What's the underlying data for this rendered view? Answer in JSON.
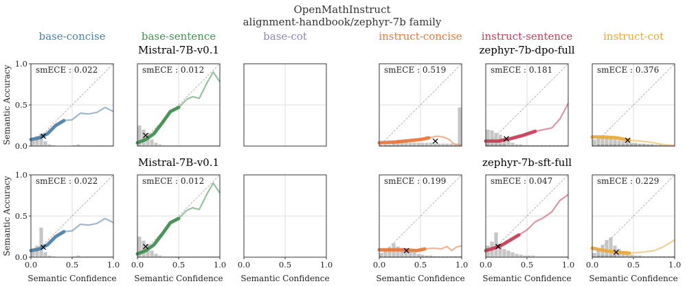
{
  "figure": {
    "title": "OpenMathInstruct",
    "subtitle": "alignment-handbook/zephyr-7b family"
  },
  "colors": {
    "base-concise": "#4c7fa8",
    "base-sentence": "#3f8f4e",
    "base-cot": "#8a84c4",
    "instruct-concise": "#e8773a",
    "instruct-sentence": "#c63d55",
    "instruct-cot": "#e8a93a",
    "hist": "#b3b3b3",
    "grid": "#dddddd",
    "diag": "#aaaaaa"
  },
  "column_titles": [
    "base-concise",
    "base-sentence",
    "base-cot",
    "instruct-concise",
    "instruct-sentence",
    "instruct-cot"
  ],
  "row_titles": [
    {
      "left": "Mistral-7B-v0.1",
      "right": "zephyr-7b-dpo-full"
    },
    {
      "left": "Mistral-7B-v0.1",
      "right": "zephyr-7b-sft-full"
    }
  ],
  "axes_labels": {
    "x": "Semantic Confidence",
    "y": "Semantic Accuracy",
    "ticks": [
      "0.0",
      "0.5",
      "1.0"
    ]
  },
  "chart_data": [
    {
      "type": "line",
      "row": 0,
      "col": 0,
      "label": "smECE : 0.022",
      "empty": false,
      "curve": [
        [
          0,
          0.08
        ],
        [
          0.1,
          0.1
        ],
        [
          0.2,
          0.15
        ],
        [
          0.3,
          0.25
        ],
        [
          0.4,
          0.31
        ],
        [
          0.5,
          0.32
        ],
        [
          0.6,
          0.4
        ],
        [
          0.7,
          0.39
        ],
        [
          0.8,
          0.41
        ],
        [
          0.9,
          0.47
        ],
        [
          1.0,
          0.42
        ]
      ],
      "marker": [
        0.15,
        0.12
      ],
      "hist": [
        0.08,
        0.12,
        0.15,
        0.06,
        0.02,
        0.01,
        0,
        0,
        0,
        0,
        0.01,
        0.02,
        0.01,
        0.01,
        0.01,
        0.01,
        0.01,
        0.01,
        0.01,
        0.01
      ],
      "hist_light": [],
      "ylim": [
        0,
        1
      ],
      "xlim": [
        0,
        1
      ]
    },
    {
      "type": "line",
      "row": 0,
      "col": 1,
      "label": "smECE : 0.012",
      "empty": false,
      "curve": [
        [
          0,
          0.04
        ],
        [
          0.1,
          0.08
        ],
        [
          0.2,
          0.15
        ],
        [
          0.3,
          0.28
        ],
        [
          0.4,
          0.42
        ],
        [
          0.5,
          0.47
        ],
        [
          0.6,
          0.57
        ],
        [
          0.67,
          0.6
        ],
        [
          0.75,
          0.58
        ],
        [
          0.85,
          0.78
        ],
        [
          0.92,
          0.9
        ],
        [
          1.0,
          0.78
        ]
      ],
      "marker": [
        0.1,
        0.13
      ],
      "hist": [
        0.25,
        0.2,
        0.16,
        0.08,
        0.04,
        0.02,
        0.01,
        0.01,
        0.01,
        0.01,
        0.01,
        0.01,
        0.01,
        0.01,
        0.01,
        0.01,
        0.01,
        0.01,
        0.01,
        0.01
      ],
      "hist_light": [],
      "ylim": [
        0,
        1
      ],
      "xlim": [
        0,
        1
      ]
    },
    {
      "type": "line",
      "row": 0,
      "col": 2,
      "label": "",
      "empty": true,
      "curve": [],
      "marker": null,
      "hist": [],
      "hist_light": [],
      "ylim": [
        0,
        1
      ],
      "xlim": [
        0,
        1
      ]
    },
    {
      "type": "line",
      "row": 0,
      "col": 3,
      "label": "smECE : 0.519",
      "empty": false,
      "curve": [
        [
          0,
          0.04
        ],
        [
          0.2,
          0.05
        ],
        [
          0.4,
          0.07
        ],
        [
          0.5,
          0.08
        ],
        [
          0.6,
          0.1
        ],
        [
          0.7,
          0.12
        ],
        [
          0.78,
          0.11
        ],
        [
          0.85,
          0.08
        ],
        [
          0.9,
          0.03
        ],
        [
          1.0,
          0.01
        ]
      ],
      "marker": [
        0.68,
        0.06
      ],
      "hist": [
        0.01,
        0.02,
        0.02,
        0.05,
        0.07,
        0.06,
        0.05,
        0.04,
        0.04,
        0.04,
        0.04,
        0.04,
        0.04,
        0.03,
        0.03,
        0.03,
        0.03,
        0.03,
        0.02,
        0.47
      ],
      "hist_light": [
        0.01,
        0.01,
        0.01,
        0.01,
        0.01,
        0.01,
        0.01,
        0.01,
        0.01,
        0.01,
        0.01,
        0.01,
        0.01,
        0.01,
        0.01,
        0.01,
        0.01,
        0.01,
        0.01,
        0.01
      ],
      "ylim": [
        0,
        1
      ],
      "xlim": [
        0,
        1
      ]
    },
    {
      "type": "line",
      "row": 0,
      "col": 4,
      "label": "smECE : 0.181",
      "empty": false,
      "curve": [
        [
          0,
          0.06
        ],
        [
          0.15,
          0.06
        ],
        [
          0.3,
          0.09
        ],
        [
          0.45,
          0.13
        ],
        [
          0.6,
          0.18
        ],
        [
          0.7,
          0.2
        ],
        [
          0.8,
          0.22
        ],
        [
          0.9,
          0.33
        ],
        [
          1.0,
          0.52
        ]
      ],
      "marker": [
        0.25,
        0.09
      ],
      "hist": [
        0.2,
        0.19,
        0.16,
        0.14,
        0.1,
        0.06,
        0.04,
        0.02,
        0.02,
        0.01,
        0.01,
        0.01,
        0.01,
        0.01,
        0.01,
        0.01,
        0.01,
        0.01,
        0.01,
        0.01
      ],
      "hist_light": [
        0.02,
        0.02,
        0.02,
        0.02,
        0.02,
        0.01,
        0.01,
        0.01,
        0.01,
        0.01,
        0.01,
        0.01,
        0.01,
        0.01,
        0.01,
        0.01,
        0.01,
        0.01,
        0.01,
        0.01
      ],
      "ylim": [
        0,
        1
      ],
      "xlim": [
        0,
        1
      ]
    },
    {
      "type": "line",
      "row": 0,
      "col": 5,
      "label": "smECE : 0.376",
      "empty": false,
      "curve": [
        [
          0,
          0.11
        ],
        [
          0.15,
          0.11
        ],
        [
          0.3,
          0.1
        ],
        [
          0.45,
          0.07
        ],
        [
          0.6,
          0.06
        ],
        [
          0.75,
          0.04
        ],
        [
          0.85,
          0.02
        ],
        [
          1.0,
          0.01
        ]
      ],
      "marker": [
        0.43,
        0.07
      ],
      "hist": [
        0.08,
        0.09,
        0.11,
        0.1,
        0.09,
        0.08,
        0.07,
        0.06,
        0.05,
        0.04,
        0.04,
        0.03,
        0.03,
        0.02,
        0.02,
        0.02,
        0.02,
        0.01,
        0.01,
        0.01
      ],
      "hist_light": [
        0.01,
        0.02,
        0.02,
        0.02,
        0.02,
        0.02,
        0.02,
        0.02,
        0.02,
        0.02,
        0.02,
        0.02,
        0.02,
        0.02,
        0.02,
        0.01,
        0.01,
        0.01,
        0.01,
        0.01
      ],
      "ylim": [
        0,
        1
      ],
      "xlim": [
        0,
        1
      ]
    },
    {
      "type": "line",
      "row": 1,
      "col": 0,
      "label": "smECE : 0.022",
      "empty": false,
      "curve": [
        [
          0,
          0.08
        ],
        [
          0.1,
          0.1
        ],
        [
          0.2,
          0.15
        ],
        [
          0.3,
          0.25
        ],
        [
          0.4,
          0.31
        ],
        [
          0.5,
          0.32
        ],
        [
          0.6,
          0.4
        ],
        [
          0.7,
          0.39
        ],
        [
          0.8,
          0.41
        ],
        [
          0.9,
          0.47
        ],
        [
          1.0,
          0.42
        ]
      ],
      "marker": [
        0.15,
        0.12
      ],
      "hist": [
        0.1,
        0.14,
        0.36,
        0.06,
        0.02,
        0.01,
        0,
        0,
        0,
        0,
        0.01,
        0.02,
        0.01,
        0.01,
        0.01,
        0.01,
        0.01,
        0.01,
        0.01,
        0.01
      ],
      "hist_light": [],
      "ylim": [
        0,
        1
      ],
      "xlim": [
        0,
        1
      ]
    },
    {
      "type": "line",
      "row": 1,
      "col": 1,
      "label": "smECE : 0.012",
      "empty": false,
      "curve": [
        [
          0,
          0.04
        ],
        [
          0.1,
          0.08
        ],
        [
          0.2,
          0.15
        ],
        [
          0.3,
          0.28
        ],
        [
          0.4,
          0.42
        ],
        [
          0.5,
          0.47
        ],
        [
          0.6,
          0.57
        ],
        [
          0.67,
          0.6
        ],
        [
          0.75,
          0.58
        ],
        [
          0.85,
          0.78
        ],
        [
          0.92,
          0.9
        ],
        [
          1.0,
          0.78
        ]
      ],
      "marker": [
        0.1,
        0.13
      ],
      "hist": [
        0.25,
        0.2,
        0.16,
        0.08,
        0.04,
        0.02,
        0.01,
        0.01,
        0.01,
        0.01,
        0.01,
        0.01,
        0.01,
        0.01,
        0.01,
        0.01,
        0.01,
        0.01,
        0.01,
        0.01
      ],
      "hist_light": [],
      "ylim": [
        0,
        1
      ],
      "xlim": [
        0,
        1
      ]
    },
    {
      "type": "line",
      "row": 1,
      "col": 2,
      "label": "",
      "empty": true,
      "curve": [],
      "marker": null,
      "hist": [],
      "hist_light": [],
      "ylim": [
        0,
        1
      ],
      "xlim": [
        0,
        1
      ]
    },
    {
      "type": "line",
      "row": 1,
      "col": 3,
      "label": "smECE : 0.199",
      "empty": false,
      "curve": [
        [
          0,
          0.09
        ],
        [
          0.15,
          0.09
        ],
        [
          0.3,
          0.09
        ],
        [
          0.45,
          0.08
        ],
        [
          0.55,
          0.1
        ],
        [
          0.65,
          0.11
        ],
        [
          0.75,
          0.1
        ],
        [
          0.82,
          0.13
        ],
        [
          0.88,
          0.08
        ],
        [
          0.93,
          0.12
        ],
        [
          1.0,
          0.14
        ]
      ],
      "marker": [
        0.33,
        0.08
      ],
      "hist": [
        0.05,
        0.08,
        0.12,
        0.17,
        0.13,
        0.11,
        0.09,
        0.08,
        0.06,
        0.04,
        0.03,
        0.02,
        0.02,
        0.01,
        0.01,
        0.01,
        0.01,
        0.01,
        0.01,
        0.01
      ],
      "hist_light": [
        0.01,
        0.01,
        0.01,
        0.01,
        0.01,
        0.01,
        0.01,
        0.01,
        0.01,
        0.01,
        0.01,
        0.01,
        0.01,
        0.01,
        0.01,
        0.01,
        0.01,
        0.01,
        0.01,
        0.01
      ],
      "ylim": [
        0,
        1
      ],
      "xlim": [
        0,
        1
      ]
    },
    {
      "type": "line",
      "row": 1,
      "col": 4,
      "label": "smECE : 0.047",
      "empty": false,
      "curve": [
        [
          0,
          0.08
        ],
        [
          0.1,
          0.11
        ],
        [
          0.2,
          0.15
        ],
        [
          0.3,
          0.21
        ],
        [
          0.4,
          0.27
        ],
        [
          0.5,
          0.33
        ],
        [
          0.6,
          0.43
        ],
        [
          0.7,
          0.48
        ],
        [
          0.8,
          0.55
        ],
        [
          0.9,
          0.69
        ],
        [
          1.0,
          0.76
        ]
      ],
      "marker": [
        0.15,
        0.13
      ],
      "hist": [
        0.14,
        0.19,
        0.3,
        0.16,
        0.1,
        0.08,
        0.06,
        0.04,
        0.03,
        0.02,
        0.02,
        0.02,
        0.01,
        0.01,
        0.01,
        0.01,
        0.01,
        0.01,
        0.01,
        0.01
      ],
      "hist_light": [],
      "ylim": [
        0,
        1
      ],
      "xlim": [
        0,
        1
      ]
    },
    {
      "type": "line",
      "row": 1,
      "col": 5,
      "label": "smECE : 0.229",
      "empty": false,
      "curve": [
        [
          0,
          0.11
        ],
        [
          0.15,
          0.08
        ],
        [
          0.3,
          0.06
        ],
        [
          0.45,
          0.05
        ],
        [
          0.6,
          0.06
        ],
        [
          0.75,
          0.08
        ],
        [
          0.85,
          0.12
        ],
        [
          1.0,
          0.21
        ]
      ],
      "marker": [
        0.29,
        0.06
      ],
      "hist": [
        0.05,
        0.1,
        0.15,
        0.21,
        0.24,
        0.14,
        0.1,
        0.07,
        0.05,
        0.03,
        0.02,
        0.02,
        0.01,
        0.01,
        0.01,
        0.01,
        0.01,
        0.01,
        0.01,
        0.01
      ],
      "hist_light": [
        0.01,
        0.02,
        0.02,
        0.02,
        0.02,
        0.02,
        0.01,
        0.01,
        0.01,
        0.01,
        0.01,
        0.01,
        0.01,
        0.01,
        0.01,
        0.01,
        0.01,
        0.01,
        0.01,
        0.01
      ],
      "ylim": [
        0,
        1
      ],
      "xlim": [
        0,
        1
      ]
    }
  ]
}
